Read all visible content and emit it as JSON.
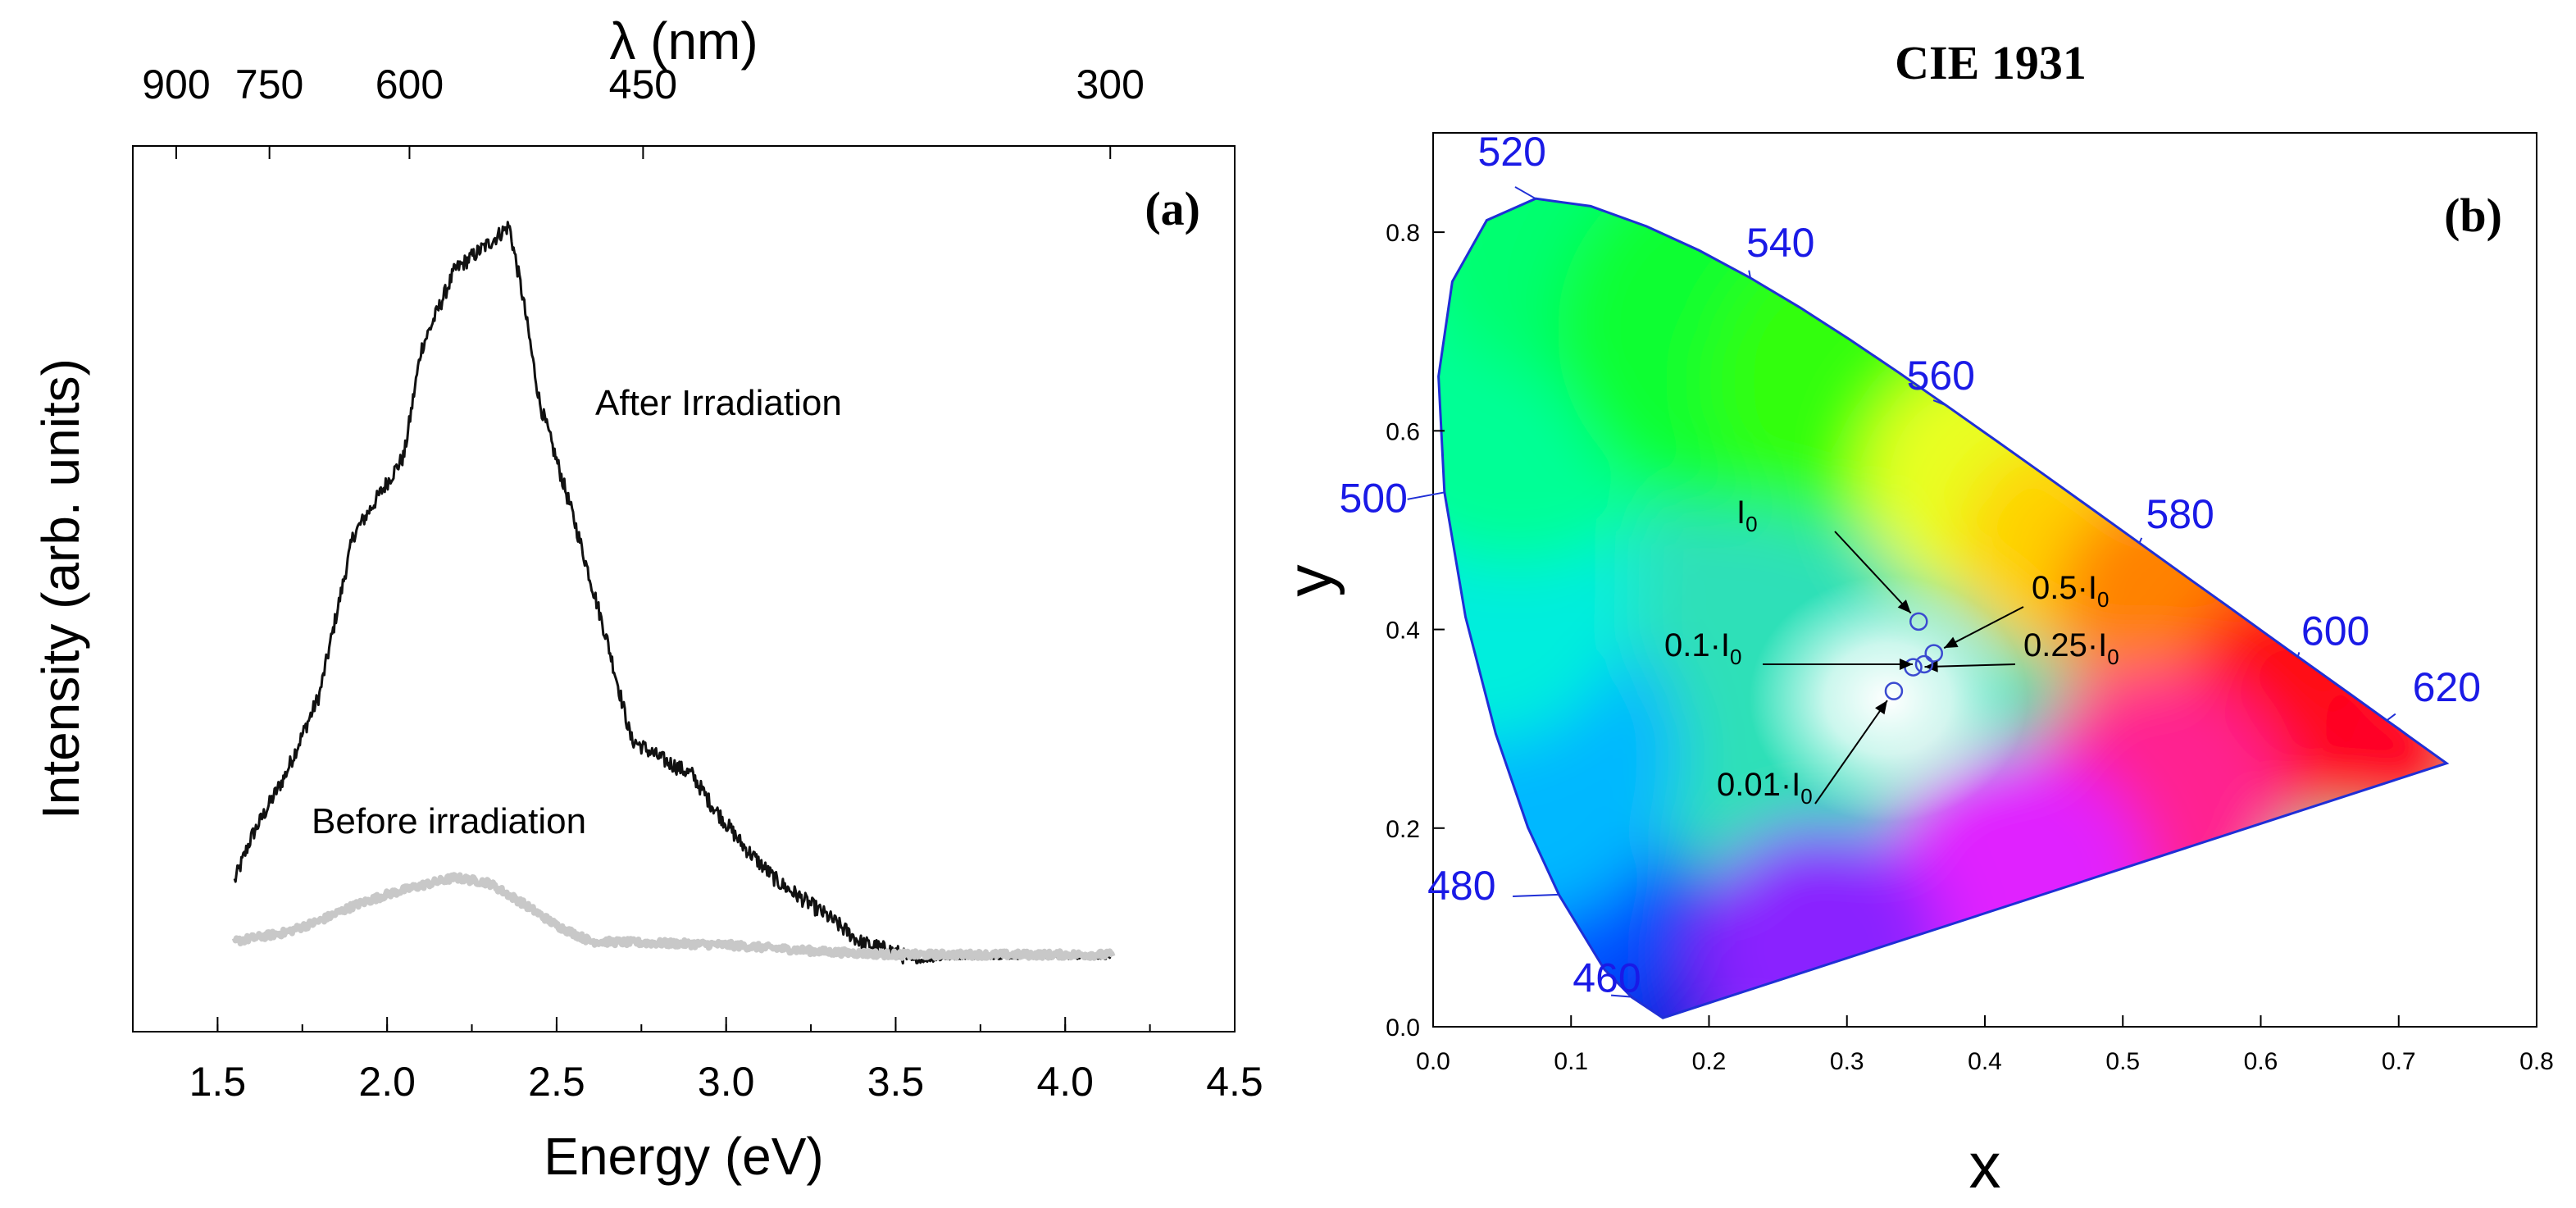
{
  "chart_data": [
    {
      "type": "line",
      "panel_label": "(a)",
      "xlabel": "Energy (eV)",
      "ylabel": "Intensity (arb. units)",
      "xlim": [
        1.25,
        4.5
      ],
      "ylim": [
        0,
        1.0
      ],
      "x_ticks": [
        "1.5",
        "2.0",
        "2.5",
        "3.0",
        "3.5",
        "4.0",
        "4.5"
      ],
      "top_axis": {
        "label": "λ (nm)",
        "ticks": [
          {
            "label": "900",
            "energy_ev": 1.378
          },
          {
            "label": "750",
            "energy_ev": 1.653
          },
          {
            "label": "600",
            "energy_ev": 2.066
          },
          {
            "label": "450",
            "energy_ev": 2.755
          },
          {
            "label": "300",
            "energy_ev": 4.133
          }
        ]
      },
      "series": [
        {
          "name": "After Irradiation",
          "color": "#111111",
          "points": [
            [
              1.55,
              0.17
            ],
            [
              1.6,
              0.22
            ],
            [
              1.7,
              0.29
            ],
            [
              1.8,
              0.38
            ],
            [
              1.9,
              0.56
            ],
            [
              2.0,
              0.62
            ],
            [
              2.05,
              0.65
            ],
            [
              2.1,
              0.77
            ],
            [
              2.2,
              0.86
            ],
            [
              2.3,
              0.89
            ],
            [
              2.36,
              0.91
            ],
            [
              2.4,
              0.83
            ],
            [
              2.45,
              0.71
            ],
            [
              2.55,
              0.58
            ],
            [
              2.65,
              0.44
            ],
            [
              2.72,
              0.33
            ],
            [
              2.8,
              0.31
            ],
            [
              2.9,
              0.29
            ],
            [
              2.95,
              0.26
            ],
            [
              3.05,
              0.21
            ],
            [
              3.15,
              0.17
            ],
            [
              3.3,
              0.13
            ],
            [
              3.4,
              0.1
            ],
            [
              3.5,
              0.09
            ],
            [
              3.55,
              0.08
            ],
            [
              3.7,
              0.085
            ],
            [
              4.14,
              0.085
            ]
          ]
        },
        {
          "name": "Before irradiation",
          "color": "#c8c8c8",
          "points": [
            [
              1.55,
              0.102
            ],
            [
              1.7,
              0.112
            ],
            [
              1.8,
              0.125
            ],
            [
              1.9,
              0.142
            ],
            [
              2.0,
              0.155
            ],
            [
              2.1,
              0.165
            ],
            [
              2.2,
              0.174
            ],
            [
              2.3,
              0.168
            ],
            [
              2.4,
              0.145
            ],
            [
              2.5,
              0.12
            ],
            [
              2.6,
              0.102
            ],
            [
              2.8,
              0.1
            ],
            [
              3.0,
              0.098
            ],
            [
              3.3,
              0.09
            ],
            [
              3.5,
              0.087
            ],
            [
              4.14,
              0.087
            ]
          ]
        }
      ],
      "annotations": [
        "After Irradiation",
        "Before irradiation"
      ]
    },
    {
      "type": "scatter",
      "panel_label": "(b)",
      "title": "CIE 1931",
      "xlabel": "x",
      "ylabel": "y",
      "xlim": [
        0.0,
        0.8
      ],
      "ylim": [
        0.0,
        0.9
      ],
      "x_ticks": [
        "0.0",
        "0.1",
        "0.2",
        "0.3",
        "0.4",
        "0.5",
        "0.6",
        "0.7",
        "0.8"
      ],
      "y_ticks": [
        "0.0",
        "0.2",
        "0.4",
        "0.6",
        "0.8"
      ],
      "locus": [
        [
          0.1666,
          0.0089
        ],
        [
          0.144,
          0.0297
        ],
        [
          0.1241,
          0.0578
        ],
        [
          0.0913,
          0.1327
        ],
        [
          0.0687,
          0.2007
        ],
        [
          0.0454,
          0.295
        ],
        [
          0.0235,
          0.4127
        ],
        [
          0.0082,
          0.5384
        ],
        [
          0.0039,
          0.6548
        ],
        [
          0.0139,
          0.7502
        ],
        [
          0.0389,
          0.812
        ],
        [
          0.0743,
          0.8338
        ],
        [
          0.1142,
          0.8262
        ],
        [
          0.1547,
          0.8059
        ],
        [
          0.1929,
          0.7816
        ],
        [
          0.2296,
          0.7543
        ],
        [
          0.2658,
          0.7243
        ],
        [
          0.3016,
          0.6923
        ],
        [
          0.3373,
          0.6589
        ],
        [
          0.3731,
          0.6245
        ],
        [
          0.4087,
          0.5896
        ],
        [
          0.4441,
          0.5547
        ],
        [
          0.4788,
          0.5202
        ],
        [
          0.5125,
          0.4866
        ],
        [
          0.5448,
          0.4544
        ],
        [
          0.5752,
          0.4242
        ],
        [
          0.6029,
          0.3965
        ],
        [
          0.627,
          0.3725
        ],
        [
          0.6482,
          0.3514
        ],
        [
          0.6658,
          0.334
        ],
        [
          0.6801,
          0.3197
        ],
        [
          0.6915,
          0.3083
        ],
        [
          0.7006,
          0.2993
        ],
        [
          0.7079,
          0.292
        ],
        [
          0.7347,
          0.2653
        ]
      ],
      "wavelength_labels": [
        {
          "label": "460",
          "x": 0.144,
          "y": 0.03
        },
        {
          "label": "480",
          "x": 0.091,
          "y": 0.133
        },
        {
          "label": "500",
          "x": 0.008,
          "y": 0.538
        },
        {
          "label": "520",
          "x": 0.074,
          "y": 0.834
        },
        {
          "label": "540",
          "x": 0.23,
          "y": 0.754
        },
        {
          "label": "560",
          "x": 0.373,
          "y": 0.625
        },
        {
          "label": "580",
          "x": 0.512,
          "y": 0.487
        },
        {
          "label": "600",
          "x": 0.627,
          "y": 0.373
        },
        {
          "label": "620",
          "x": 0.691,
          "y": 0.308
        }
      ],
      "points": [
        {
          "label": "I",
          "sub": "0",
          "x": 0.352,
          "y": 0.408
        },
        {
          "label": "0.5·I",
          "sub": "0",
          "x": 0.363,
          "y": 0.376
        },
        {
          "label": "0.25·I",
          "sub": "0",
          "x": 0.348,
          "y": 0.362
        },
        {
          "label": "0.1·I",
          "sub": "0",
          "x": 0.356,
          "y": 0.365
        },
        {
          "label": "0.01·I",
          "sub": "0",
          "x": 0.334,
          "y": 0.338
        }
      ]
    }
  ]
}
